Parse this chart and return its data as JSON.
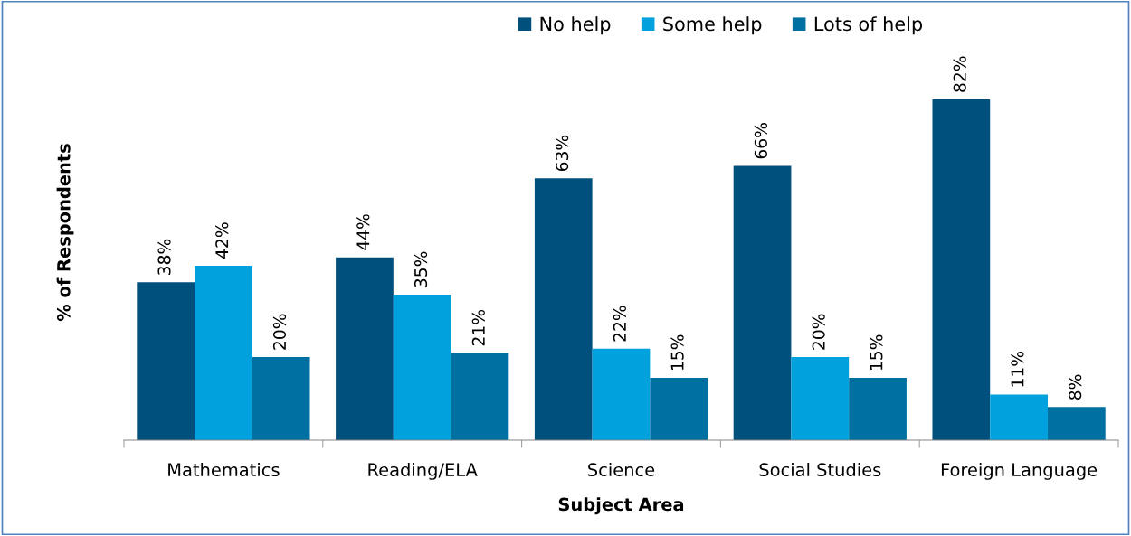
{
  "chart_data": {
    "type": "bar",
    "xlabel": "Subject Area",
    "ylabel": "% of Respondents",
    "categories": [
      "Mathematics",
      "Reading/ELA",
      "Science",
      "Social Studies",
      "Foreign Language"
    ],
    "series": [
      {
        "name": "No help",
        "color": "#00507e",
        "values": [
          38,
          44,
          63,
          66,
          82
        ],
        "value_labels": [
          "38%",
          "44%",
          "63%",
          "66%",
          "82%"
        ]
      },
      {
        "name": "Some help",
        "color": "#00a1dc",
        "values": [
          42,
          35,
          22,
          20,
          11
        ],
        "value_labels": [
          "42%",
          "35%",
          "22%",
          "20%",
          "11%"
        ]
      },
      {
        "name": "Lots of help",
        "color": "#006fa1",
        "values": [
          20,
          21,
          15,
          15,
          8
        ],
        "value_labels": [
          "20%",
          "21%",
          "15%",
          "15%",
          "8%"
        ]
      }
    ],
    "tick_labels": "x",
    "grid": false,
    "legend": "top"
  }
}
